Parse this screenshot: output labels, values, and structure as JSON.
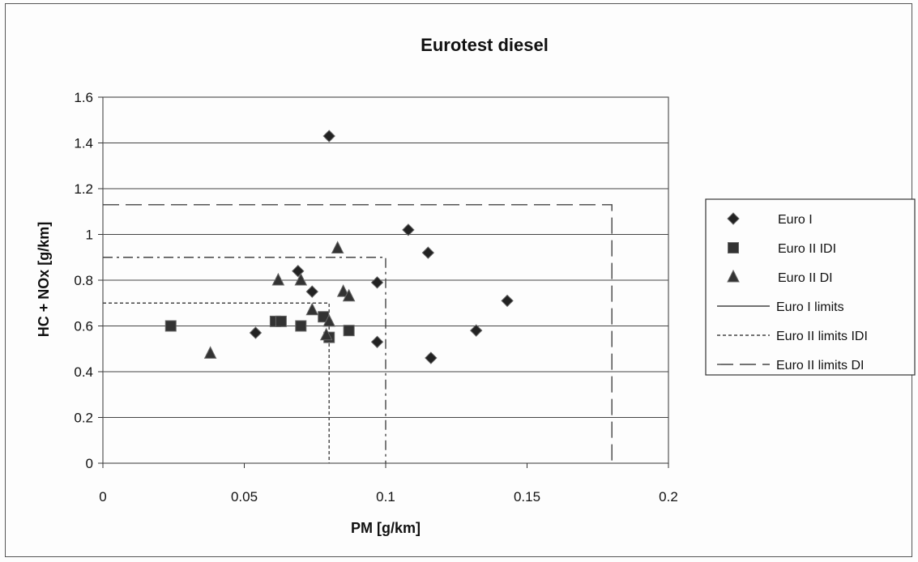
{
  "chart_data": {
    "type": "scatter",
    "title": "Eurotest diesel",
    "xlabel": "PM [g/km]",
    "ylabel": "HC + NOx [g/km]",
    "xlim": [
      0,
      0.2
    ],
    "ylim": [
      0,
      1.6
    ],
    "x_ticks": [
      "0",
      "0.05",
      "0.1",
      "0.15",
      "0.2"
    ],
    "y_ticks": [
      "0",
      "0.2",
      "0.4",
      "0.6",
      "0.8",
      "1",
      "1.2",
      "1.4",
      "1.6"
    ],
    "grid": "horizontal",
    "legend_position": "right",
    "series": [
      {
        "name": "Euro I",
        "marker": "diamond",
        "color": "#222222",
        "points": [
          [
            0.08,
            1.43
          ],
          [
            0.108,
            1.02
          ],
          [
            0.115,
            0.92
          ],
          [
            0.069,
            0.84
          ],
          [
            0.074,
            0.75
          ],
          [
            0.097,
            0.79
          ],
          [
            0.143,
            0.71
          ],
          [
            0.054,
            0.57
          ],
          [
            0.097,
            0.53
          ],
          [
            0.132,
            0.58
          ],
          [
            0.116,
            0.46
          ]
        ]
      },
      {
        "name": "Euro II IDI",
        "marker": "square",
        "color": "#333333",
        "points": [
          [
            0.024,
            0.6
          ],
          [
            0.061,
            0.62
          ],
          [
            0.063,
            0.62
          ],
          [
            0.07,
            0.6
          ],
          [
            0.078,
            0.64
          ],
          [
            0.08,
            0.55
          ],
          [
            0.087,
            0.58
          ]
        ]
      },
      {
        "name": "Euro II DI",
        "marker": "triangle",
        "color": "#333333",
        "points": [
          [
            0.038,
            0.48
          ],
          [
            0.062,
            0.8
          ],
          [
            0.07,
            0.8
          ],
          [
            0.083,
            0.94
          ],
          [
            0.074,
            0.67
          ],
          [
            0.08,
            0.62
          ],
          [
            0.085,
            0.75
          ],
          [
            0.087,
            0.73
          ],
          [
            0.079,
            0.56
          ]
        ]
      },
      {
        "name": "Euro I limits",
        "line": "solid",
        "color": "#444444",
        "points": []
      },
      {
        "name": "Euro II limits IDI",
        "line": "dotted",
        "color": "#444444",
        "points": [
          [
            0.0,
            0.7
          ],
          [
            0.08,
            0.7
          ],
          [
            0.08,
            0.0
          ]
        ]
      },
      {
        "name": "Euro II limits DI",
        "line": "dashed",
        "color": "#444444",
        "points": [
          [
            0.0,
            1.13
          ],
          [
            0.18,
            1.13
          ],
          [
            0.18,
            0.0
          ]
        ]
      },
      {
        "name": "",
        "line": "dashdot",
        "color": "#444444",
        "points": [
          [
            0.0,
            0.9
          ],
          [
            0.1,
            0.9
          ],
          [
            0.1,
            0.0
          ]
        ]
      }
    ]
  }
}
